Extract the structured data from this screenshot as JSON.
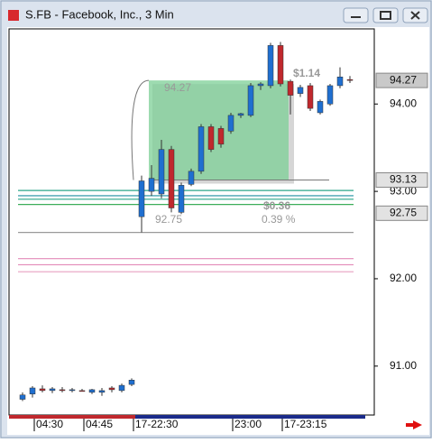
{
  "chart_data": {
    "type": "candlestick",
    "title": "S.FB - Facebook, Inc., 3 Min",
    "categories": [
      null,
      null,
      "04:30",
      null,
      null,
      null,
      null,
      "04:45",
      null,
      null,
      null,
      null,
      "17-22:30",
      null,
      null,
      null,
      null,
      null,
      null,
      null,
      null,
      null,
      "23:00",
      null,
      null,
      null,
      null,
      "17-23:15",
      null,
      null,
      null,
      null,
      null,
      null
    ],
    "open": [
      90.62,
      90.68,
      90.74,
      90.72,
      90.73,
      90.72,
      90.72,
      90.7,
      90.7,
      90.75,
      90.72,
      90.79,
      92.71,
      93.0,
      92.97,
      93.48,
      92.76,
      93.08,
      93.23,
      93.74,
      93.72,
      93.69,
      93.87,
      93.87,
      94.21,
      94.21,
      94.67,
      94.26,
      94.12,
      94.21,
      93.9,
      94.0,
      94.21,
      94.28
    ],
    "high": [
      90.7,
      90.77,
      90.78,
      90.76,
      90.76,
      90.75,
      90.74,
      90.74,
      90.75,
      90.77,
      90.8,
      90.86,
      93.18,
      93.3,
      93.59,
      93.52,
      93.1,
      93.26,
      93.77,
      93.77,
      93.75,
      93.9,
      93.9,
      94.24,
      94.25,
      94.7,
      94.71,
      94.28,
      94.22,
      94.24,
      94.05,
      94.23,
      94.42,
      94.32
    ],
    "low": [
      90.6,
      90.64,
      90.7,
      90.69,
      90.7,
      90.7,
      90.71,
      90.68,
      90.66,
      90.7,
      90.7,
      90.77,
      92.53,
      92.95,
      92.92,
      92.76,
      92.74,
      93.06,
      93.2,
      93.45,
      93.5,
      93.66,
      93.84,
      93.85,
      94.16,
      94.18,
      94.2,
      93.88,
      94.08,
      93.92,
      93.88,
      93.98,
      94.18,
      94.24
    ],
    "close": [
      90.67,
      90.75,
      90.72,
      90.74,
      90.72,
      90.73,
      90.71,
      90.73,
      90.72,
      90.73,
      90.78,
      90.84,
      93.12,
      93.15,
      93.48,
      92.81,
      93.07,
      93.23,
      93.74,
      93.48,
      93.54,
      93.87,
      93.89,
      94.21,
      94.23,
      94.67,
      94.23,
      94.1,
      94.19,
      93.95,
      94.03,
      94.21,
      94.31,
      94.27
    ],
    "up_color": "#1f6fd0",
    "down_color": "#c0282d",
    "ylim": [
      90.44,
      94.86
    ],
    "yticks": [
      {
        "value": 91,
        "label": "91.00"
      },
      {
        "value": 92,
        "label": "92.00"
      },
      {
        "value": 93,
        "label": "93.00"
      },
      {
        "value": 94,
        "label": "94.00"
      }
    ],
    "levels": [
      {
        "value": 93.01,
        "color": "#2aa58a"
      },
      {
        "value": 92.95,
        "color": "#1f8fa0"
      },
      {
        "value": 92.91,
        "color": "#2aa58a"
      },
      {
        "value": 92.85,
        "color": "#3cae5a"
      },
      {
        "value": 92.53,
        "color": "#999999"
      },
      {
        "value": 92.23,
        "color": "#e38ab8"
      },
      {
        "value": 92.16,
        "color": "#e38ab8"
      },
      {
        "value": 92.08,
        "color": "#e8a0c0"
      }
    ],
    "measure": {
      "from": 93.13,
      "to": 94.27,
      "color": "#7ccf96"
    },
    "price_labels": [
      94.27,
      93.13,
      92.75
    ],
    "annotations": [
      "$1.14",
      "94.27",
      "$0.36",
      "0.39 %",
      "92.75"
    ]
  }
}
